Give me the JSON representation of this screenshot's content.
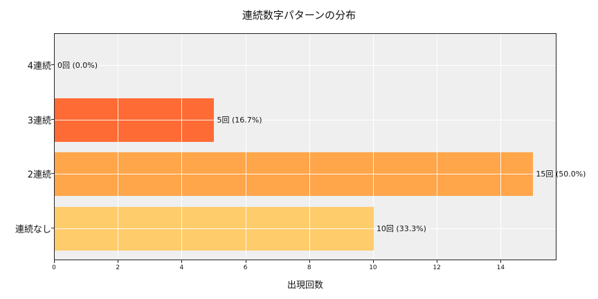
{
  "chart_data": {
    "type": "bar",
    "orientation": "horizontal",
    "title": "連続数字パターンの分布",
    "xlabel": "出現回数",
    "ylabel": "",
    "categories": [
      "4連続",
      "3連続",
      "2連続",
      "連続なし"
    ],
    "values": [
      0,
      5,
      15,
      10
    ],
    "percentages": [
      0.0,
      16.7,
      50.0,
      33.3
    ],
    "data_labels": [
      "0回 (0.0%)",
      "5回 (16.7%)",
      "15回 (50.0%)",
      "10回 (33.3%)"
    ],
    "colors": [
      "#ff6b35",
      "#ff6b35",
      "#ffa54a",
      "#ffcc6b"
    ],
    "xlim": [
      0,
      15.75
    ],
    "xticks": [
      "0",
      "2",
      "4",
      "6",
      "8",
      "10",
      "12",
      "14"
    ],
    "grid": true,
    "background": "#efefef",
    "legend": null
  }
}
